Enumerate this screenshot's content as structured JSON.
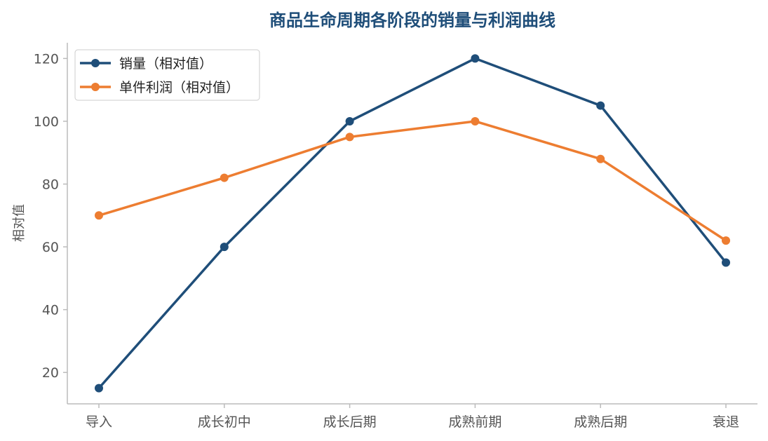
{
  "chart_data": {
    "type": "line",
    "title": "商品生命周期各阶段的销量与利润曲线",
    "xlabel": "",
    "ylabel": "相对值",
    "categories": [
      "导入",
      "成长初中",
      "成长后期",
      "成熟前期",
      "成熟后期",
      "衰退"
    ],
    "ylim": [
      10,
      125
    ],
    "yticks": [
      20,
      40,
      60,
      80,
      100,
      120
    ],
    "grid": false,
    "legend_position": "top-left",
    "series": [
      {
        "name": "销量（相对值）",
        "color": "#1f4e79",
        "values": [
          15,
          60,
          100,
          120,
          105,
          55
        ]
      },
      {
        "name": "单件利润（相对值）",
        "color": "#ed7d31",
        "values": [
          70,
          82,
          95,
          100,
          88,
          62
        ]
      }
    ]
  }
}
